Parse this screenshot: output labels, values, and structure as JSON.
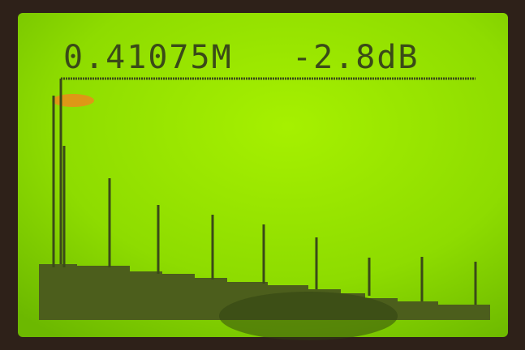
{
  "display": {
    "frequency": "0.41075M",
    "level": "-2.8dB"
  }
}
